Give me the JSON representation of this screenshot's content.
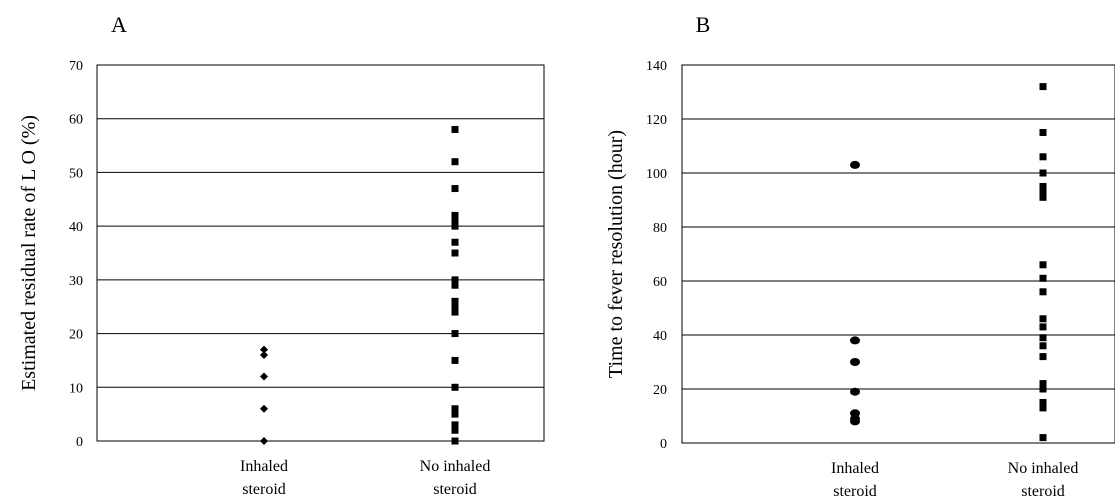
{
  "chart_data": [
    {
      "panel_label": "A",
      "type": "scatter",
      "ylabel": "Estimated residual rate of L O (%)",
      "ylim": [
        0,
        70
      ],
      "yticks": [
        0,
        10,
        20,
        30,
        40,
        50,
        60,
        70
      ],
      "grid": true,
      "categories": [
        {
          "line1": "Inhaled",
          "line2": "steroid"
        },
        {
          "line1": "No inhaled",
          "line2": "steroid"
        }
      ],
      "marker_shapes": [
        "diamond",
        "square"
      ],
      "series": [
        {
          "category_index": 0,
          "values": [
            0,
            6,
            12,
            16,
            17
          ]
        },
        {
          "category_index": 1,
          "values": [
            0,
            2,
            3,
            5,
            6,
            10,
            15,
            20,
            24,
            25,
            26,
            29,
            30,
            35,
            37,
            40,
            41,
            42,
            47,
            52,
            58
          ]
        }
      ]
    },
    {
      "panel_label": "B",
      "type": "scatter",
      "ylabel": "Time to fever resolution (hour)",
      "ylim": [
        0,
        140
      ],
      "yticks": [
        0,
        20,
        40,
        60,
        80,
        100,
        120,
        140
      ],
      "grid": true,
      "categories": [
        {
          "line1": "Inhaled",
          "line2": "steroid"
        },
        {
          "line1": "No inhaled",
          "line2": "steroid"
        }
      ],
      "marker_shapes": [
        "circle",
        "square"
      ],
      "series": [
        {
          "category_index": 0,
          "values": [
            8,
            9,
            11,
            19,
            30,
            38,
            103
          ]
        },
        {
          "category_index": 1,
          "values": [
            2,
            13,
            15,
            20,
            22,
            32,
            36,
            39,
            43,
            46,
            56,
            61,
            66,
            91,
            93,
            95,
            100,
            106,
            115,
            132
          ]
        }
      ]
    }
  ]
}
